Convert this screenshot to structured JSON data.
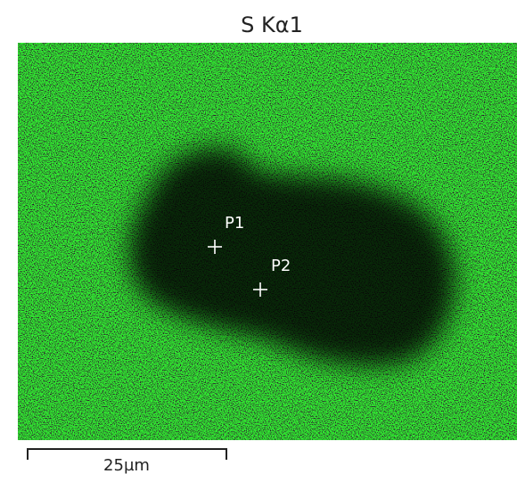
{
  "title": "S Kα1",
  "points": [
    {
      "label": "P1"
    },
    {
      "label": "P2"
    }
  ],
  "scale_bar": {
    "label": "25µm"
  }
}
